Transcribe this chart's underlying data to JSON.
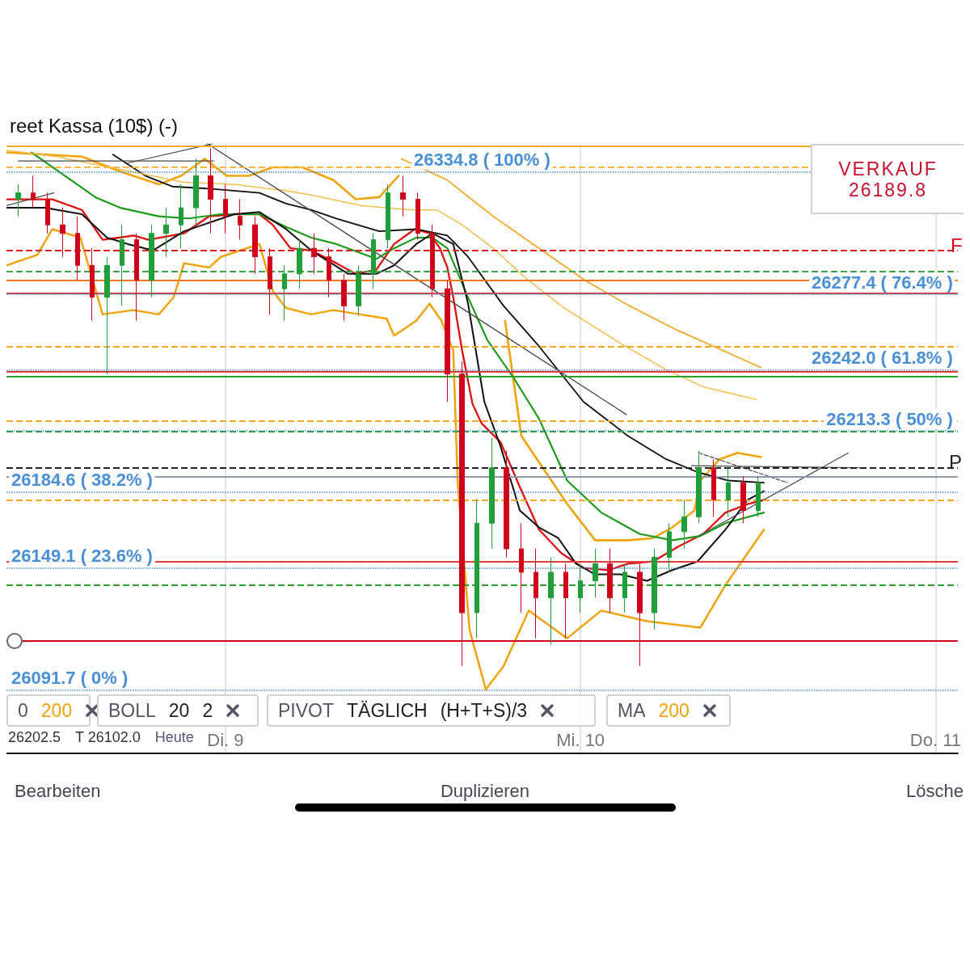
{
  "chart_data": {
    "type": "candlestick",
    "title": "reet Kassa (10$) (-)",
    "xlim": [
      "--04-08T09:12",
      "--04-11T01:30"
    ],
    "xticks": [
      {
        "value": "--04-09",
        "label": "Di. 9"
      },
      {
        "value": "--04-10",
        "label": "Mi. 10"
      },
      {
        "value": "--04-11",
        "label": "Do. 11"
      }
    ],
    "ylim": [
      26062,
      26348
    ],
    "tick_labels": "x",
    "grid": "x",
    "marker": "none",
    "x": [
      "--04-08T10:00",
      "--04-08T11:00",
      "--04-08T12:00",
      "--04-08T13:00",
      "--04-08T14:00",
      "--04-08T15:00",
      "--04-08T16:00",
      "--04-08T17:00",
      "--04-08T18:00",
      "--04-08T19:00",
      "--04-08T20:00",
      "--04-08T21:00",
      "--04-08T22:00",
      "--04-08T23:00",
      "--04-09T00:00",
      "--04-09T01:00",
      "--04-09T02:00",
      "--04-09T03:00",
      "--04-09T04:00",
      "--04-09T05:00",
      "--04-09T06:00",
      "--04-09T07:00",
      "--04-09T08:00",
      "--04-09T09:00",
      "--04-09T10:00",
      "--04-09T11:00",
      "--04-09T12:00",
      "--04-09T13:00",
      "--04-09T14:00",
      "--04-09T15:00",
      "--04-09T16:00",
      "--04-09T17:00",
      "--04-09T18:00",
      "--04-09T19:00",
      "--04-09T20:00",
      "--04-09T21:00",
      "--04-09T22:00",
      "--04-09T23:00",
      "--04-10T00:00",
      "--04-10T01:00",
      "--04-10T02:00",
      "--04-10T03:00",
      "--04-10T04:00",
      "--04-10T05:00",
      "--04-10T06:00",
      "--04-10T07:00",
      "--04-10T08:00",
      "--04-10T09:00",
      "--04-10T10:00",
      "--04-10T11:00",
      "--04-10T12:00"
    ],
    "ohlc": [
      [
        26322,
        26329,
        26314,
        26325
      ],
      [
        26325,
        26333,
        26318,
        26322
      ],
      [
        26322,
        26325,
        26306,
        26310
      ],
      [
        26310,
        26318,
        26295,
        26306
      ],
      [
        26306,
        26314,
        26284,
        26291
      ],
      [
        26291,
        26299,
        26265,
        26276
      ],
      [
        26276,
        26295,
        26240,
        26291
      ],
      [
        26291,
        26310,
        26272,
        26303
      ],
      [
        26303,
        26306,
        26265,
        26284
      ],
      [
        26284,
        26310,
        26276,
        26306
      ],
      [
        26306,
        26318,
        26295,
        26310
      ],
      [
        26310,
        26329,
        26299,
        26318
      ],
      [
        26318,
        26341,
        26310,
        26333
      ],
      [
        26333,
        26346,
        26306,
        26322
      ],
      [
        26322,
        26329,
        26306,
        26314
      ],
      [
        26314,
        26322,
        26303,
        26310
      ],
      [
        26310,
        26314,
        26287,
        26295
      ],
      [
        26295,
        26299,
        26268,
        26280
      ],
      [
        26280,
        26291,
        26265,
        26287
      ],
      [
        26287,
        26303,
        26280,
        26299
      ],
      [
        26299,
        26306,
        26287,
        26295
      ],
      [
        26295,
        26299,
        26276,
        26284
      ],
      [
        26284,
        26287,
        26265,
        26272
      ],
      [
        26272,
        26291,
        26268,
        26287
      ],
      [
        26287,
        26306,
        26280,
        26303
      ],
      [
        26303,
        26329,
        26299,
        26325
      ],
      [
        26325,
        26333,
        26314,
        26322
      ],
      [
        26322,
        26325,
        26303,
        26306
      ],
      [
        26306,
        26310,
        26276,
        26280
      ],
      [
        26280,
        26284,
        26227,
        26240
      ],
      [
        26240,
        26246,
        26103,
        26128
      ],
      [
        26128,
        26181,
        26116,
        26170
      ],
      [
        26170,
        26210,
        26158,
        26196
      ],
      [
        26196,
        26204,
        26154,
        26158
      ],
      [
        26158,
        26170,
        26128,
        26147
      ],
      [
        26147,
        26158,
        26116,
        26135
      ],
      [
        26135,
        26154,
        26113,
        26147
      ],
      [
        26147,
        26151,
        26116,
        26135
      ],
      [
        26135,
        26151,
        26128,
        26143
      ],
      [
        26143,
        26158,
        26135,
        26151
      ],
      [
        26151,
        26158,
        26128,
        26135
      ],
      [
        26135,
        26151,
        26128,
        26147
      ],
      [
        26147,
        26151,
        26103,
        26128
      ],
      [
        26128,
        26158,
        26120,
        26154
      ],
      [
        26154,
        26170,
        26147,
        26166
      ],
      [
        26166,
        26181,
        26158,
        26173
      ],
      [
        26173,
        26204,
        26170,
        26196
      ],
      [
        26196,
        26200,
        26173,
        26181
      ],
      [
        26181,
        26196,
        26173,
        26189
      ],
      [
        26189,
        26192,
        26170,
        26176
      ],
      [
        26176,
        26192,
        26173,
        26189
      ]
    ],
    "colors": [
      "#1f9e3a",
      "#d0021b",
      "#d0021b",
      "#d0021b",
      "#d0021b",
      "#d0021b",
      "#1f9e3a",
      "#1f9e3a",
      "#d0021b",
      "#1f9e3a",
      "#1f9e3a",
      "#1f9e3a",
      "#1f9e3a",
      "#d0021b",
      "#d0021b",
      "#d0021b",
      "#d0021b",
      "#d0021b",
      "#1f9e3a",
      "#1f9e3a",
      "#d0021b",
      "#d0021b",
      "#d0021b",
      "#1f9e3a",
      "#1f9e3a",
      "#1f9e3a",
      "#d0021b",
      "#d0021b",
      "#d0021b",
      "#d0021b",
      "#d0021b",
      "#1f9e3a",
      "#1f9e3a",
      "#d0021b",
      "#d0021b",
      "#d0021b",
      "#1f9e3a",
      "#d0021b",
      "#1f9e3a",
      "#1f9e3a",
      "#d0021b",
      "#1f9e3a",
      "#d0021b",
      "#1f9e3a",
      "#1f9e3a",
      "#1f9e3a",
      "#1f9e3a",
      "#d0021b",
      "#1f9e3a",
      "#d0021b",
      "#1f9e3a"
    ],
    "series": [
      {
        "type": "line",
        "color": "#f0a30a",
        "line_style": "solid",
        "x": [
          "--04-08T09:12",
          "--04-08T14:18",
          "--04-08T16:54",
          "--04-08T19:30",
          "--04-08T21:00",
          "--04-08T22:36",
          "--04-09T00:06",
          "--04-09T01:36",
          "--04-09T03:12",
          "--04-09T05:12",
          "--04-09T07:18",
          "--04-09T08:48",
          "--04-09T10:24",
          "--04-09T11:42",
          "--04-09T12:54",
          "--04-09T15:30",
          "--04-09T17:48",
          "--04-09T18:54",
          "--04-09T20:00",
          "--04-09T23:06",
          "--04-10T01:00",
          "--04-10T03:12",
          "--04-10T04:54",
          "--04-10T06:12",
          "--04-10T07:42",
          "--04-10T08:06",
          "--04-10T09:24",
          "--04-10T10:36",
          "--04-10T12:12"
        ],
        "values": [
          26344,
          26342,
          26335,
          26329,
          26333,
          26341,
          26333,
          26333,
          26337,
          26337,
          26331,
          26322,
          26323,
          26333,
          null,
          null,
          null,
          26265,
          26211,
          26179,
          26162,
          26162,
          26163,
          26168,
          26176,
          26190,
          26200,
          26203,
          26201
        ]
      },
      {
        "type": "line",
        "color": "#f0a30a",
        "line_style": "solid",
        "x": [
          "--04-08T09:12",
          "--04-08T11:18",
          "--04-08T12:18",
          "--04-08T14:12",
          "--04-08T15:42",
          "--04-08T17:48",
          "--04-08T19:30",
          "--04-08T20:30",
          "--04-08T21:12",
          "--04-08T22:54",
          "--04-08T23:42",
          "--04-09T02:18",
          "--04-09T03:12",
          "--04-09T04:06",
          "--04-09T05:48",
          "--04-09T07:18",
          "--04-09T10:54",
          "--04-09T11:24",
          "--04-09T12:54",
          "--04-09T13:48",
          "--04-09T14:36",
          "--04-09T15:24",
          "--04-09T15:42",
          "--04-09T16:30",
          "--04-09T17:36",
          "--04-09T18:48",
          "--04-09T20:30",
          "--04-09T23:06",
          "--04-10T01:24",
          "--04-10T04:30",
          "--04-10T08:06",
          "--04-10T09:48",
          "--04-10T10:54",
          "--04-10T12:24"
        ],
        "values": [
          26291,
          26296,
          26308,
          26304,
          26268,
          26270,
          26268,
          26276,
          26292,
          26290,
          26295,
          26301,
          26279,
          26271,
          26268,
          26270,
          26266,
          26258,
          26265,
          26273,
          26265,
          26251,
          26189,
          26120,
          26092,
          26103,
          26129,
          26116,
          26129,
          26124,
          26121,
          26141,
          26152,
          26167
        ]
      },
      {
        "type": "line",
        "color": "#e01010",
        "line_style": "solid",
        "x": [
          "--04-08T09:12",
          "--04-08T12:18",
          "--04-08T14:18",
          "--04-08T15:42",
          "--04-08T16:48",
          "--04-08T17:48",
          "--04-08T18:48",
          "--04-08T21:12",
          "--04-08T22:54",
          "--04-09T00:36",
          "--04-09T02:18",
          "--04-09T03:12",
          "--04-09T04:24",
          "--04-09T05:48",
          "--04-09T07:30",
          "--04-09T08:48",
          "--04-09T10:12",
          "--04-09T11:24",
          "--04-09T12:48",
          "--04-09T13:48",
          "--04-09T14:30",
          "--04-09T15:00",
          "--04-09T15:24",
          "--04-09T16:00",
          "--04-09T16:42",
          "--04-09T17:18",
          "--04-09T18:36",
          "--04-09T19:54",
          "--04-09T21:12",
          "--04-09T22:42",
          "--04-10T00:12",
          "--04-10T01:54",
          "--04-10T03:12",
          "--04-10T04:54",
          "--04-10T06:36",
          "--04-10T08:18",
          "--04-10T09:48",
          "--04-10T11:18",
          "--04-10T12:24"
        ],
        "values": [
          26322,
          26322,
          26317,
          26303,
          26304,
          26305,
          26303,
          26306,
          26314,
          26315,
          26315,
          26310,
          26299,
          26298,
          26292,
          26287,
          26289,
          26301,
          26308,
          26306,
          26299,
          26290,
          26276,
          26251,
          26226,
          26217,
          26208,
          26187,
          26167,
          26156,
          26149,
          26148,
          26151,
          26152,
          26159,
          26165,
          26175,
          26179,
          26181
        ]
      },
      {
        "type": "line",
        "color": "#1a9a1a",
        "line_style": "solid",
        "x": [
          "--04-08T10:54",
          "--04-08T15:12",
          "--04-08T16:54",
          "--04-08T19:30",
          "--04-08T21:30",
          "--04-08T23:42",
          "--04-09T02:18",
          "--04-09T04:06",
          "--04-09T05:48",
          "--04-09T07:30",
          "--04-09T10:12",
          "--04-09T11:24",
          "--04-09T12:54",
          "--04-09T14:00",
          "--04-09T15:00",
          "--04-09T16:24",
          "--04-09T17:42",
          "--04-09T19:30",
          "--04-09T21:12",
          "--04-09T23:06",
          "--04-10T01:24",
          "--04-10T04:00",
          "--04-10T06:12",
          "--04-10T08:06",
          "--04-10T09:48",
          "--04-10T12:24"
        ],
        "values": [
          26344,
          26323,
          26318,
          26314,
          26313,
          26315,
          26315,
          26309,
          26304,
          26301,
          26294,
          26299,
          26304,
          26304,
          26299,
          26276,
          26256,
          26238,
          26219,
          26190,
          26175,
          26165,
          26162,
          26164,
          26170,
          26175
        ]
      },
      {
        "type": "line",
        "color": "#111111",
        "line_style": "solid",
        "x": [
          "--04-08T09:12",
          "--04-08T11:48",
          "--04-08T14:18",
          "--04-08T16:00",
          "--04-08T17:24",
          "--04-08T19:06",
          "--04-08T21:12",
          "--04-08T22:54",
          "--04-09T00:36",
          "--04-09T02:18",
          "--04-09T04:06",
          "--04-09T05:48",
          "--04-09T08:18",
          "--04-09T10:12",
          "--04-09T11:24",
          "--04-09T12:54",
          "--04-09T14:00",
          "--04-09T15:24",
          "--04-09T16:24",
          "--04-09T17:30",
          "--04-09T18:36",
          "--04-09T19:54",
          "--04-09T21:12",
          "--04-09T22:30",
          "--04-09T23:42",
          "--04-10T01:00",
          "--04-10T02:42",
          "--04-10T04:30",
          "--04-10T06:12",
          "--04-10T07:54",
          "--04-10T09:48",
          "--04-10T11:18",
          "--04-10T12:24"
        ],
        "values": [
          26318,
          26318,
          26315,
          26304,
          26301,
          26298,
          26307,
          26311,
          26315,
          26316,
          26308,
          26298,
          26287,
          26287,
          26291,
          26301,
          26306,
          26301,
          26273,
          26227,
          26206,
          26176,
          26168,
          26163,
          26151,
          26146,
          26146,
          26143,
          26148,
          26152,
          26167,
          26181,
          26185
        ]
      },
      {
        "type": "line",
        "color": "#111111",
        "line_style": "solid",
        "x": [
          "--04-08T16:24",
          "--04-08T18:36",
          "--04-08T20:24",
          "--04-08T22:54",
          "--04-09T02:18",
          "--04-09T04:06",
          "--04-09T05:48",
          "--04-09T07:30",
          "--04-09T10:24",
          "--04-09T12:54",
          "--04-09T15:00",
          "--04-09T16:24",
          "--04-09T18:48",
          "--04-09T21:12",
          "--04-10T00:12",
          "--04-10T03:12",
          "--04-10T05:48",
          "--04-10T07:54",
          "--04-10T10:00",
          "--04-10T12:24"
        ],
        "values": [
          26343,
          26333,
          26328,
          26327,
          26325,
          26320,
          26317,
          26313,
          26307,
          26308,
          26305,
          26295,
          26272,
          26253,
          26227,
          26211,
          26200,
          26194,
          26190,
          26189
        ]
      },
      {
        "type": "line",
        "color": "#f5a623",
        "line_style": "solid",
        "x": [
          "--04-09T11:54",
          "--04-09T15:00",
          "--04-09T18:06",
          "--04-09T21:12",
          "--04-10T00:18",
          "--04-10T03:18",
          "--04-10T06:24",
          "--04-10T09:00",
          "--04-10T12:12"
        ],
        "values": [
          26341,
          26331,
          26314,
          26299,
          26284,
          26272,
          26261,
          26253,
          26243
        ]
      },
      {
        "type": "line",
        "color": "#f5b942",
        "line_style": "dotted",
        "x": [
          "--04-08T09:12",
          "--04-08T12:36",
          "--04-08T21:12",
          "--04-09T00:36",
          "--04-09T04:06",
          "--04-09T05:48",
          "--04-09T09:12",
          "--04-09T12:36",
          "--04-09T14:18",
          "--04-09T16:00",
          "--04-09T18:06",
          "--04-09T20:18",
          "--04-09T22:54",
          "--04-10T02:48",
          "--04-10T05:48",
          "--04-10T08:18",
          "--04-10T11:54"
        ],
        "values": [
          26345,
          26342,
          26330,
          26329,
          26326,
          26324,
          26319,
          26317,
          26317,
          26310,
          26299,
          26285,
          26271,
          26254,
          26242,
          26234,
          26228
        ]
      },
      {
        "type": "line",
        "color": "#4a4a4a",
        "line_style": "solid",
        "x": [
          "--04-08T22:48",
          "--04-10T03:06"
        ],
        "values": [
          26348,
          26221
        ]
      },
      {
        "type": "line",
        "color": "#4a4a4a",
        "line_style": "solid",
        "x": [
          "--04-08T10:00",
          "--04-08T23:12"
        ],
        "values": [
          26340,
          26340
        ]
      },
      {
        "type": "line",
        "color": "#4a4a4a",
        "line_style": "solid",
        "x": [
          "--04-08T17:24",
          "--04-08T23:06"
        ],
        "values": [
          26339,
          26348
        ]
      },
      {
        "type": "line",
        "color": "#4a4a4a",
        "line_style": "solid",
        "x": [
          "--04-08T09:12",
          "--04-08T12:24"
        ],
        "values": [
          26319,
          26325
        ]
      },
      {
        "type": "line",
        "color": "#4a4a4a",
        "line_style": "solid",
        "x": [
          "--04-10T08:00",
          "--04-10T18:06"
        ],
        "values": [
          26164,
          26203
        ]
      },
      {
        "type": "line",
        "color": "#4a4a4a",
        "line_style": "solid",
        "x": [
          "--04-10T07:30",
          "--04-10T19:18"
        ],
        "values": [
          26197,
          26196
        ]
      },
      {
        "type": "line",
        "color": "#4a4a4a",
        "line_style": "dashed",
        "x": [
          "--04-10T08:00",
          "--04-10T14:00"
        ],
        "values": [
          26203,
          26189
        ]
      }
    ],
    "ref_lines": [
      {
        "axis": "y",
        "value": 26347,
        "color": "#f5a623",
        "line_style": "solid"
      },
      {
        "axis": "y",
        "value": 26337,
        "color": "#f5b942",
        "line_style": "dashed"
      },
      {
        "axis": "y",
        "value": 26298,
        "color": "#e02020",
        "line_style": "dashed"
      },
      {
        "axis": "y",
        "value": 26288,
        "color": "#3aa845",
        "line_style": "dashed"
      },
      {
        "axis": "y",
        "value": 26284,
        "color": "#f07a20",
        "line_style": "solid"
      },
      {
        "axis": "y",
        "value": 26278,
        "color": "#e03a3a",
        "line_style": "solid"
      },
      {
        "axis": "y",
        "value": 26253,
        "color": "#f5a623",
        "line_style": "dashed"
      },
      {
        "axis": "y",
        "value": 26241,
        "color": "#e03a3a",
        "line_style": "solid"
      },
      {
        "axis": "y",
        "value": 26239,
        "color": "#2ca02c",
        "line_style": "solid"
      },
      {
        "axis": "y",
        "value": 26218,
        "color": "#f5a623",
        "line_style": "dashed"
      },
      {
        "axis": "y",
        "value": 26213,
        "color": "#2ca02c",
        "line_style": "dashed"
      },
      {
        "axis": "y",
        "value": 26196,
        "color": "#222222",
        "line_style": "dashed"
      },
      {
        "axis": "y",
        "value": 26192,
        "color": "#8a9ab0",
        "line_style": "solid"
      },
      {
        "axis": "y",
        "value": 26181,
        "color": "#f5a623",
        "line_style": "dashed"
      },
      {
        "axis": "y",
        "value": 26152,
        "color": "#e03a3a",
        "line_style": "solid"
      },
      {
        "axis": "y",
        "value": 26141,
        "color": "#2ca02c",
        "line_style": "dashed"
      },
      {
        "axis": "y",
        "value": 26115,
        "color": "#d0021b",
        "line_style": "solid"
      },
      {
        "axis": "y",
        "value": 26334.8,
        "label": "26334.8 ( 100% )",
        "color": "#4a90d9",
        "line_style": "dotted"
      },
      {
        "axis": "y",
        "value": 26277.4,
        "label": "26277.4 ( 76.4% )",
        "color": "#4a90d9",
        "line_style": "dotted"
      },
      {
        "axis": "y",
        "value": 26242.0,
        "label": "26242.0 ( 61.8% )",
        "color": "#4a90d9",
        "line_style": "dotted"
      },
      {
        "axis": "y",
        "value": 26213.3,
        "label": "26213.3 ( 50% )",
        "color": "#4a90d9",
        "line_style": "dotted"
      },
      {
        "axis": "y",
        "value": 26184.6,
        "label": "26184.6 ( 38.2% )",
        "color": "#4a90d9",
        "line_style": "dotted"
      },
      {
        "axis": "y",
        "value": 26149.1,
        "label": "26149.1 ( 23.6% )",
        "color": "#4a90d9",
        "line_style": "dotted"
      },
      {
        "axis": "y",
        "value": 26091.7,
        "label": "26091.7 ( 0% )",
        "color": "#4a90d9",
        "line_style": "dotted"
      }
    ],
    "annotations": [
      "VERKAUF",
      "26189.8",
      "F",
      "P",
      "0",
      "200",
      "BOLL",
      "20",
      "2",
      "PIVOT",
      "TÄGLICH",
      "(H+T+S)/3",
      "MA",
      "200",
      "26202.5",
      "T 26102.0",
      "Heute",
      "Bearbeiten",
      "Duplizieren",
      "Lösche"
    ]
  }
}
